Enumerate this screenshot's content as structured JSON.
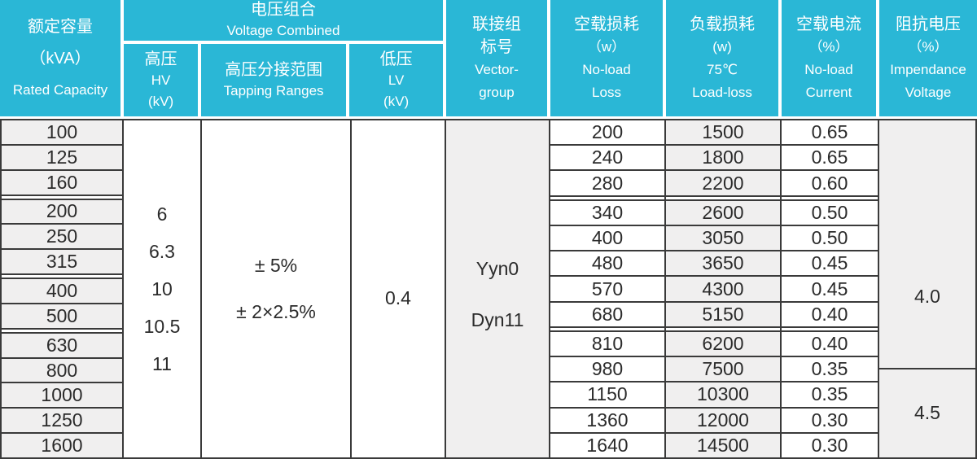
{
  "colors": {
    "header_bg": "#2ab7d6",
    "header_text": "#ffffff",
    "cell_gray": "#f0efef",
    "border": "#3a3a3a",
    "text": "#2b2b2b"
  },
  "header": {
    "rated_capacity": {
      "zh": "额定容量",
      "unit": "（kVA）",
      "en": "Rated Capacity"
    },
    "voltage_combined": {
      "zh": "电压组合",
      "en": "Voltage Combined"
    },
    "hv": {
      "zh": "高压",
      "en": "HV",
      "unit": "(kV)"
    },
    "tapping_ranges": {
      "zh": "高压分接范围",
      "en": "Tapping Ranges"
    },
    "lv": {
      "zh": "低压",
      "en": "LV",
      "unit": "(kV)"
    },
    "vector_group": {
      "zh_line1": "联接组",
      "zh_line2": "标号",
      "en_line1": "Vector-",
      "en_line2": "group"
    },
    "no_load_loss": {
      "zh": "空载损耗",
      "unit": "（w）",
      "en_line1": "No-load",
      "en_line2": "Loss"
    },
    "load_loss": {
      "zh": "负载损耗",
      "unit": "(w)",
      "temp": "75℃",
      "en": "Load-loss"
    },
    "no_load_current": {
      "zh": "空载电流",
      "unit": "（%）",
      "en_line1": "No-load",
      "en_line2": "Current"
    },
    "impedance_voltage": {
      "zh": "阻抗电压",
      "unit": "（%）",
      "en_line1": "Impendance",
      "en_line2": "Voltage"
    }
  },
  "merged": {
    "hv_values": [
      "6",
      "6.3",
      "10",
      "10.5",
      "11"
    ],
    "tapping_values": [
      "± 5%",
      "± 2×2.5%"
    ],
    "lv_value": "0.4",
    "vector_values": [
      "Yyn0",
      "Dyn11"
    ],
    "impedance_values": [
      "4.0",
      "4.5"
    ]
  },
  "rows": [
    {
      "capacity": "100",
      "no_load_loss": "200",
      "load_loss": "1500",
      "current": "0.65"
    },
    {
      "capacity": "125",
      "no_load_loss": "240",
      "load_loss": "1800",
      "current": "0.65"
    },
    {
      "capacity": "160",
      "no_load_loss": "280",
      "load_loss": "2200",
      "current": "0.60"
    },
    {
      "capacity": "200",
      "no_load_loss": "340",
      "load_loss": "2600",
      "current": "0.50"
    },
    {
      "capacity": "250",
      "no_load_loss": "400",
      "load_loss": "3050",
      "current": "0.50"
    },
    {
      "capacity": "315",
      "no_load_loss": "480",
      "load_loss": "3650",
      "current": "0.45"
    },
    {
      "capacity": "400",
      "no_load_loss": "570",
      "load_loss": "4300",
      "current": "0.45"
    },
    {
      "capacity": "500",
      "no_load_loss": "680",
      "load_loss": "5150",
      "current": "0.40"
    },
    {
      "capacity": "630",
      "no_load_loss": "810",
      "load_loss": "6200",
      "current": "0.40"
    },
    {
      "capacity": "800",
      "no_load_loss": "980",
      "load_loss": "7500",
      "current": "0.35"
    },
    {
      "capacity": "1000",
      "no_load_loss": "1150",
      "load_loss": "10300",
      "current": "0.35"
    },
    {
      "capacity": "1250",
      "no_load_loss": "1360",
      "load_loss": "12000",
      "current": "0.30"
    },
    {
      "capacity": "1600",
      "no_load_loss": "1640",
      "load_loss": "14500",
      "current": "0.30"
    }
  ]
}
